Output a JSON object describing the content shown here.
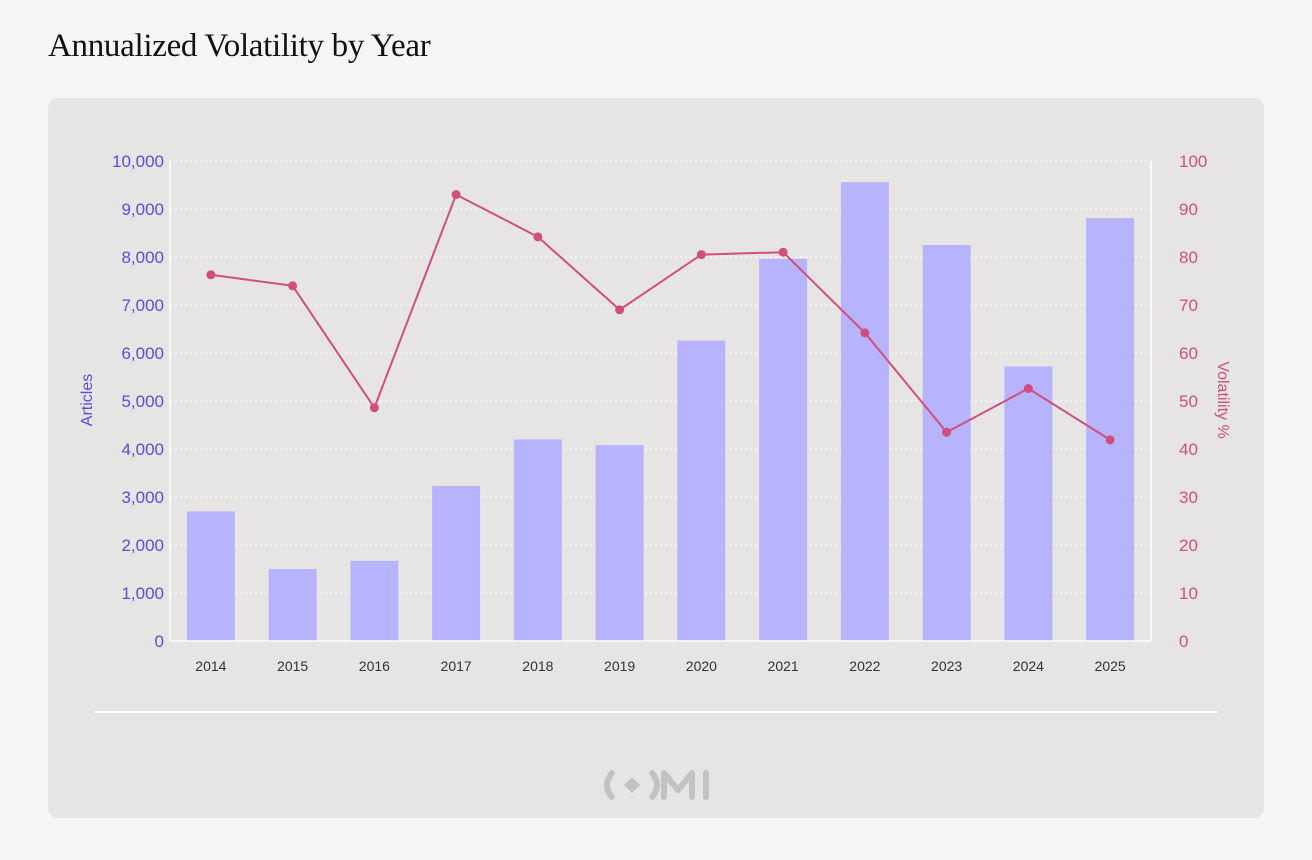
{
  "page": {
    "title": "Annualized Volatility by Year",
    "logo_icon": "omi-logo-icon"
  },
  "colors": {
    "page_background": "#f5f5f5",
    "card_background": "#e6e5e4",
    "bar": "#b8b3fd",
    "line": "#d04f7f",
    "left_axis": "#5b4cdb",
    "right_axis": "#d04f7f",
    "x_tick": "#333333",
    "grid": "#ffffff",
    "logo": "#c4c2c1"
  },
  "chart_data": {
    "type": "bar",
    "title": "Annualized Volatility by Year",
    "categories": [
      "2014",
      "2015",
      "2016",
      "2017",
      "2018",
      "2019",
      "2020",
      "2021",
      "2022",
      "2023",
      "2024",
      "2025"
    ],
    "series": [
      {
        "name": "Articles",
        "type": "bar",
        "axis": "left",
        "values": [
          2700,
          1500,
          1670,
          3230,
          4200,
          4080,
          6260,
          7960,
          9560,
          8250,
          5720,
          8810
        ]
      },
      {
        "name": "Volatility %",
        "type": "line",
        "axis": "right",
        "values": [
          76.3,
          74.0,
          48.6,
          93.0,
          84.2,
          69.0,
          80.5,
          81.0,
          64.2,
          43.5,
          52.6,
          41.9
        ]
      }
    ],
    "xlabel": "",
    "ylabel": "Articles",
    "y2label": "Volatility %",
    "ylim": [
      0,
      10000
    ],
    "y2lim": [
      0,
      100
    ],
    "yticks": [
      "0",
      "1,000",
      "2,000",
      "3,000",
      "4,000",
      "5,000",
      "6,000",
      "7,000",
      "8,000",
      "9,000",
      "10,000"
    ],
    "y2ticks": [
      "0",
      "10",
      "20",
      "30",
      "40",
      "50",
      "60",
      "70",
      "80",
      "90",
      "100"
    ],
    "grid": true,
    "legend": "none"
  }
}
